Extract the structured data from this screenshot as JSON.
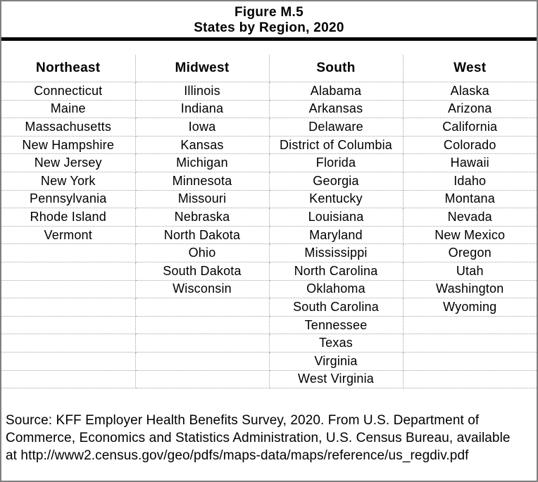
{
  "figure": {
    "title_line1": "Figure M.5",
    "title_line2": "States by Region, 2020"
  },
  "regions": [
    {
      "name": "Northeast",
      "states": [
        "Connecticut",
        "Maine",
        "Massachusetts",
        "New Hampshire",
        "New Jersey",
        "New York",
        "Pennsylvania",
        "Rhode Island",
        "Vermont"
      ]
    },
    {
      "name": "Midwest",
      "states": [
        "Illinois",
        "Indiana",
        "Iowa",
        "Kansas",
        "Michigan",
        "Minnesota",
        "Missouri",
        "Nebraska",
        "North Dakota",
        "Ohio",
        "South Dakota",
        "Wisconsin"
      ]
    },
    {
      "name": "South",
      "states": [
        "Alabama",
        "Arkansas",
        "Delaware",
        "District of Columbia",
        "Florida",
        "Georgia",
        "Kentucky",
        "Louisiana",
        "Maryland",
        "Mississippi",
        "North Carolina",
        "Oklahoma",
        "South Carolina",
        "Tennessee",
        "Texas",
        "Virginia",
        "West Virginia"
      ]
    },
    {
      "name": "West",
      "states": [
        "Alaska",
        "Arizona",
        "California",
        "Colorado",
        "Hawaii",
        "Idaho",
        "Montana",
        "Nevada",
        "New Mexico",
        "Oregon",
        "Utah",
        "Washington",
        "Wyoming"
      ]
    }
  ],
  "source_lines": [
    "Source: KFF Employer Health Benefits Survey, 2020. From U.S. Department of",
    "Commerce, Economics and Statistics Administration, U.S. Census Bureau, available",
    "at http://www2.census.gov/geo/pdfs/maps-data/maps/reference/us_regdiv.pdf"
  ],
  "colors": {
    "outer_border": "#808080",
    "title_rule": "#000000",
    "grid_dotted": "#a3a3a3",
    "text": "#000000",
    "background": "#ffffff"
  }
}
